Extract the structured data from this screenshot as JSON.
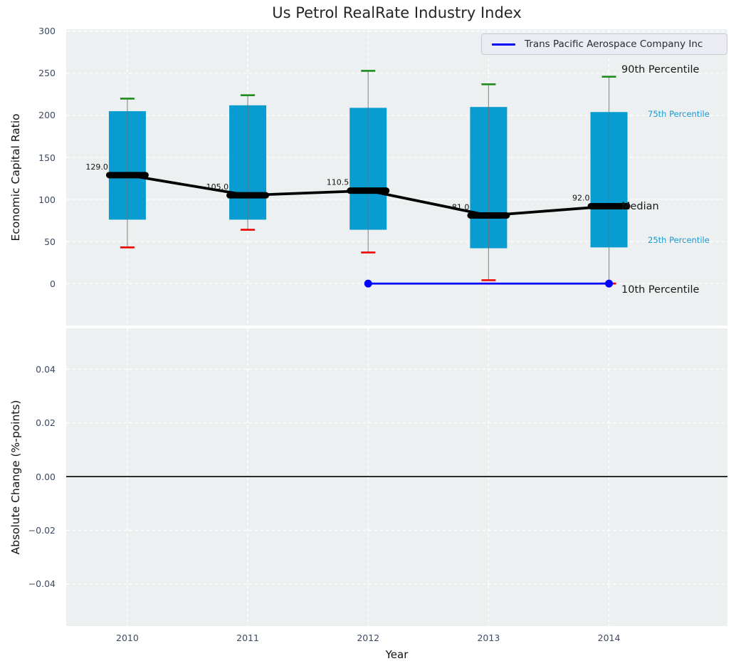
{
  "title": "Us Petrol RealRate Industry Index",
  "legend": {
    "label": "Trans Pacific Aerospace Company Inc"
  },
  "colors": {
    "box_fill": "#089cd0",
    "whisker": "#707070",
    "cap_top": "#1e8b1e",
    "cap_bottom": "#ee0000",
    "median_line": "#000000",
    "company_line": "#0000ff",
    "axes_background": "#ecf0f1",
    "grid": "#ffffff",
    "tick_label": "#3d4a63",
    "minor_label": "#189ad2",
    "zero_line": "#000000"
  },
  "chart_data": {
    "type": "boxplot",
    "title": "Us Petrol RealRate Industry Index",
    "xlabel": "Year",
    "categories": [
      2010,
      2011,
      2012,
      2013,
      2014
    ],
    "top_panel": {
      "ylabel": "Economic Capital Ratio",
      "yticks": [
        0,
        50,
        100,
        150,
        200,
        250,
        300
      ],
      "ylim": [
        -50,
        302.5
      ],
      "grid": true,
      "series": {
        "p90": [
          220,
          224,
          253,
          237,
          246
        ],
        "p75": [
          205,
          212,
          209,
          210,
          204
        ],
        "median": [
          129,
          105,
          110.5,
          81,
          92
        ],
        "p25": [
          76,
          76,
          64,
          42,
          43
        ],
        "p10": [
          43,
          64,
          37,
          4,
          0
        ]
      },
      "median_labels": [
        "129.0",
        "105.0",
        "110.5",
        "81.0",
        "92.0"
      ],
      "company_line": {
        "name": "Trans Pacific Aerospace Company Inc",
        "years": [
          2012,
          2014
        ],
        "values": [
          0,
          0
        ],
        "marker": "circle"
      },
      "right_labels": [
        {
          "text": "90th Percentile",
          "kind": "major",
          "anchor": "p90"
        },
        {
          "text": "75th Percentile",
          "kind": "minor",
          "anchor": "p75"
        },
        {
          "text": "Median",
          "kind": "major",
          "anchor": "median"
        },
        {
          "text": "25th Percentile",
          "kind": "minor",
          "anchor": "p25"
        },
        {
          "text": "10th Percentile",
          "kind": "major",
          "anchor": "p10"
        }
      ],
      "legend_position": "upper right"
    },
    "bottom_panel": {
      "ylabel": "Absolute Change (%-points)",
      "ytick_labels": [
        "0.04",
        "0.02",
        "0.00",
        "−0.02",
        "−0.04"
      ],
      "ytick_values": [
        0.04,
        0.02,
        0,
        -0.02,
        -0.04
      ],
      "ylim": [
        -0.0557,
        0.0552
      ],
      "zero_line": 0,
      "grid": true
    }
  }
}
